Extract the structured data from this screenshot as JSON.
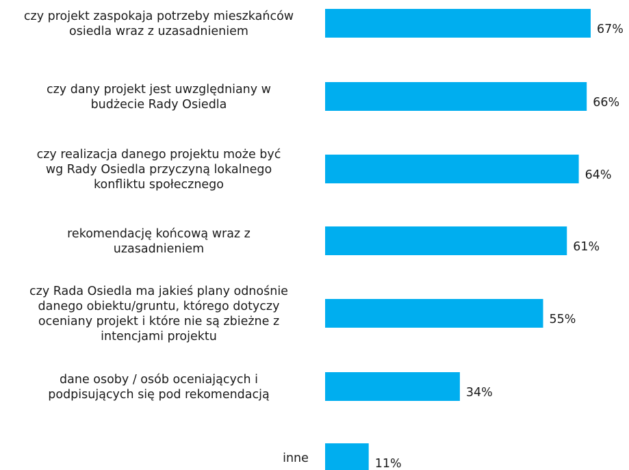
{
  "chart_data": {
    "type": "bar",
    "orientation": "horizontal",
    "categories": [
      [
        "czy projekt zaspokaja potrzeby mieszkańców",
        "osiedla wraz z uzasadnieniem"
      ],
      [
        "czy dany projekt jest uwzględniany w",
        "budżecie Rady Osiedla"
      ],
      [
        "czy realizacja danego projektu może być",
        "wg Rady Osiedla przyczyną lokalnego",
        "konfliktu społecznego"
      ],
      [
        "rekomendację końcową wraz z",
        "uzasadnieniem"
      ],
      [
        "czy Rada Osiedla ma jakieś plany odnośnie",
        "danego obiektu/gruntu, którego dotyczy",
        "oceniany projekt i  które nie są zbieżne z",
        "intencjami projektu"
      ],
      [
        "dane osoby / osób oceniających i",
        "podpisujących  się pod rekomendacją"
      ],
      [
        "inne"
      ]
    ],
    "values": [
      67,
      66,
      64,
      61,
      55,
      34,
      11
    ],
    "value_labels": [
      "67%",
      "66%",
      "64%",
      "61%",
      "55%",
      "34%",
      "11%"
    ],
    "bar_color": "#00aeef",
    "grid": false,
    "legend": "none"
  }
}
